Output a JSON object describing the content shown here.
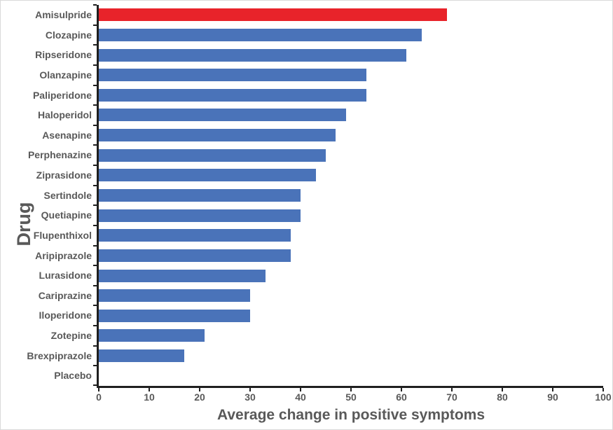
{
  "chart_data": {
    "type": "bar",
    "orientation": "horizontal",
    "title": "",
    "xlabel": "Average change in positive symptoms",
    "ylabel": "Drug",
    "xlim": [
      0,
      100
    ],
    "x_ticks": [
      0,
      10,
      20,
      30,
      40,
      50,
      60,
      70,
      80,
      90,
      100
    ],
    "grid": "off",
    "legend": "none",
    "categories": [
      "Amisulpride",
      "Clozapine",
      "Ripseridone",
      "Olanzapine",
      "Paliperidone",
      "Haloperidol",
      "Asenapine",
      "Perphenazine",
      "Ziprasidone",
      "Sertindole",
      "Quetiapine",
      "Flupenthixol",
      "Aripiprazole",
      "Lurasidone",
      "Cariprazine",
      "Iloperidone",
      "Zotepine",
      "Brexpiprazole",
      "Placebo"
    ],
    "values": [
      69,
      64,
      61,
      53,
      53,
      49,
      47,
      45,
      43,
      40,
      40,
      38,
      38,
      33,
      30,
      30,
      21,
      17,
      0
    ],
    "highlight_category": "Amisulpride",
    "bar_color": "#4a73b9",
    "highlight_color": "#e8232a"
  },
  "colors": {
    "axis": "#1f1f1f",
    "text": "#595959",
    "background": "#ffffff"
  }
}
